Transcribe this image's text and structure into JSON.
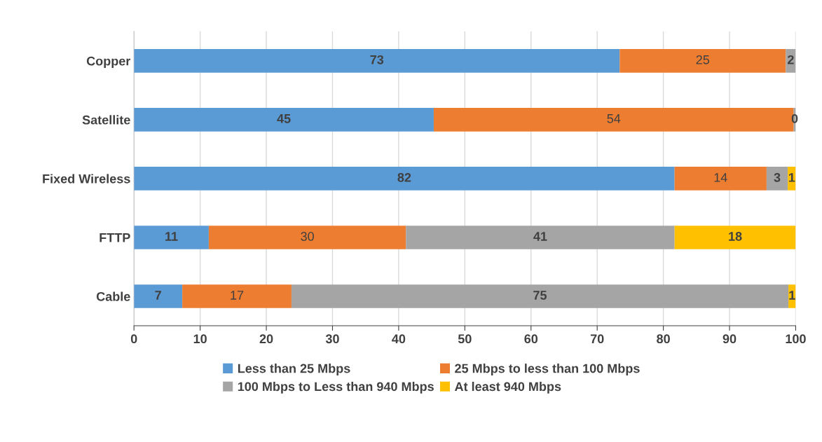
{
  "chart_data": {
    "type": "bar",
    "orientation": "horizontal",
    "stacked": true,
    "categories": [
      "Copper",
      "Satellite",
      "Fixed Wireless",
      "FTTP",
      "Cable"
    ],
    "series": [
      {
        "name": "Less than 25 Mbps",
        "color": "#5b9bd5",
        "values": [
          73.4,
          45.3,
          81.7,
          11.3,
          7.3
        ],
        "value_labels": [
          "73",
          "45",
          "82",
          "11",
          "7"
        ]
      },
      {
        "name": "25 Mbps to less than 100 Mbps",
        "color": "#ed7d31",
        "values": [
          25.1,
          54.4,
          13.9,
          29.8,
          16.5
        ],
        "value_labels": [
          "25",
          "54",
          "14",
          "30",
          "17"
        ]
      },
      {
        "name": "100 Mbps to Less than 940 Mbps",
        "color": "#a5a5a5",
        "values": [
          1.5,
          0.3,
          3.2,
          40.6,
          75.1
        ],
        "value_labels": [
          "2",
          "0",
          "3",
          "41",
          "75"
        ]
      },
      {
        "name": "At least 940 Mbps",
        "color": "#ffc000",
        "values": [
          0,
          0,
          1.2,
          18.3,
          1.1
        ],
        "value_labels": [
          null,
          null,
          "1",
          "18",
          "1"
        ]
      }
    ],
    "xlim": [
      0,
      100
    ],
    "xticks": [
      0,
      10,
      20,
      30,
      40,
      50,
      60,
      70,
      80,
      90,
      100
    ],
    "grid": "x",
    "legend": "bottom"
  }
}
